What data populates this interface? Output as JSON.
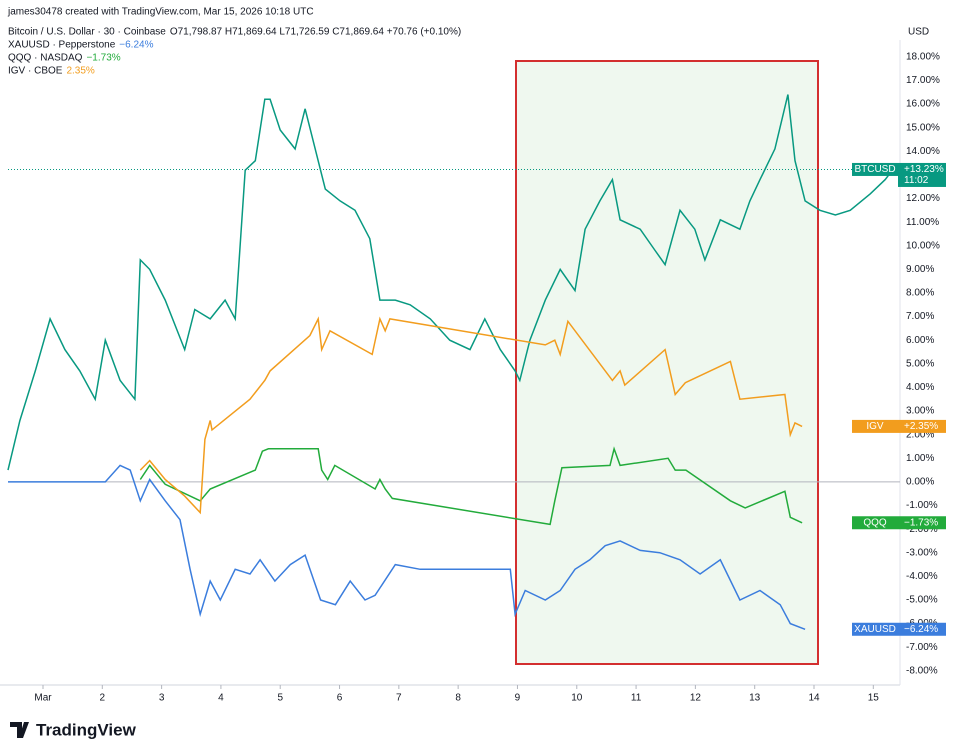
{
  "header": {
    "credit": "james30478 created with TradingView.com, Mar 15, 2026 10:18 UTC",
    "brand": "TradingView"
  },
  "chart_data": {
    "type": "line",
    "unit": "USD",
    "xlim": [
      0.41,
      15.45
    ],
    "ylim": [
      -8.6,
      18.5
    ],
    "xticks": [
      {
        "value": 1,
        "label": "Mar"
      },
      2,
      3,
      4,
      5,
      6,
      7,
      8,
      9,
      10,
      11,
      12,
      13,
      14,
      15
    ],
    "yticks": [
      {
        "value": -8,
        "label": "-8.00%"
      },
      {
        "value": -7,
        "label": "-7.00%"
      },
      {
        "value": -6,
        "label": "-6.00%"
      },
      {
        "value": -5,
        "label": "-5.00%"
      },
      {
        "value": -4,
        "label": "-4.00%"
      },
      {
        "value": -3,
        "label": "-3.00%"
      },
      {
        "value": -2,
        "label": "-2.00%"
      },
      {
        "value": -1,
        "label": "-1.00%"
      },
      {
        "value": 0,
        "label": "0.00%"
      },
      {
        "value": 1,
        "label": "1.00%"
      },
      {
        "value": 2,
        "label": "2.00%"
      },
      {
        "value": 3,
        "label": "3.00%"
      },
      {
        "value": 4,
        "label": "4.00%"
      },
      {
        "value": 5,
        "label": "5.00%"
      },
      {
        "value": 6,
        "label": "6.00%"
      },
      {
        "value": 7,
        "label": "7.00%"
      },
      {
        "value": 8,
        "label": "8.00%"
      },
      {
        "value": 9,
        "label": "9.00%"
      },
      {
        "value": 10,
        "label": "10.00%"
      },
      {
        "value": 11,
        "label": "11.00%"
      },
      {
        "value": 12,
        "label": "12.00%"
      },
      {
        "value": 13,
        "label": "13.00%"
      },
      {
        "value": 14,
        "label": "14.00%"
      },
      {
        "value": 15,
        "label": "15.00%"
      },
      {
        "value": 16,
        "label": "16.00%"
      },
      {
        "value": 17,
        "label": "17.00%"
      },
      {
        "value": 18,
        "label": "18.00%"
      }
    ],
    "series": [
      {
        "name": "BTCUSD",
        "color": "#089981",
        "legend_label": "Bitcoin / U.S. Dollar · 30 · Coinbase",
        "legend_change": "O71,798.87 H71,869.64 L71,726.59 C71,869.64 +70.76 (+0.10%)",
        "last_label": "+13.23%",
        "countdown": "11:02",
        "x": [
          0.41,
          0.61,
          0.87,
          1.12,
          1.37,
          1.62,
          1.88,
          2.05,
          2.3,
          2.55,
          2.64,
          2.8,
          3.06,
          3.39,
          3.56,
          3.82,
          4.07,
          4.24,
          4.41,
          4.58,
          4.74,
          4.83,
          5.0,
          5.25,
          5.42,
          5.59,
          5.76,
          6.01,
          6.26,
          6.51,
          6.68,
          6.94,
          7.19,
          7.53,
          7.86,
          8.2,
          8.45,
          8.71,
          8.96,
          9.04,
          9.21,
          9.47,
          9.72,
          9.97,
          10.14,
          10.39,
          10.6,
          10.73,
          11.07,
          11.32,
          11.49,
          11.74,
          11.99,
          12.16,
          12.42,
          12.75,
          12.92,
          13.09,
          13.34,
          13.56,
          13.68,
          13.85,
          14.1,
          14.36,
          14.61,
          14.95,
          15.2,
          15.33
        ],
        "values": [
          0.5,
          2.6,
          4.7,
          6.9,
          5.6,
          4.7,
          3.5,
          6.0,
          4.3,
          3.5,
          9.4,
          9.0,
          7.7,
          5.6,
          7.3,
          6.9,
          7.7,
          6.9,
          13.2,
          13.6,
          16.2,
          16.2,
          14.9,
          14.1,
          15.8,
          14.1,
          12.4,
          11.9,
          11.5,
          10.3,
          7.7,
          7.7,
          7.5,
          6.9,
          6.0,
          5.6,
          6.9,
          5.6,
          4.7,
          4.3,
          6.0,
          7.7,
          9.0,
          8.1,
          10.7,
          11.9,
          12.8,
          11.1,
          10.7,
          9.8,
          9.2,
          11.5,
          10.7,
          9.4,
          11.1,
          10.7,
          11.9,
          12.8,
          14.1,
          16.4,
          13.6,
          11.9,
          11.5,
          11.3,
          11.5,
          12.2,
          12.8,
          13.23
        ]
      },
      {
        "name": "XAUUSD",
        "color": "#3b7ddd",
        "legend_label": "XAUUSD · Pepperstone",
        "legend_change": "−6.24%",
        "last_label": "−6.24%",
        "x": [
          0.41,
          2.05,
          2.3,
          2.47,
          2.64,
          2.8,
          3.06,
          3.31,
          3.48,
          3.65,
          3.82,
          3.99,
          4.24,
          4.49,
          4.66,
          4.91,
          5.17,
          5.42,
          5.68,
          5.93,
          6.18,
          6.43,
          6.6,
          6.94,
          7.36,
          8.88,
          8.96,
          9.13,
          9.47,
          9.72,
          9.97,
          10.22,
          10.48,
          10.73,
          11.07,
          11.4,
          11.74,
          12.08,
          12.42,
          12.75,
          13.09,
          13.43,
          13.6,
          13.85
        ],
        "values": [
          0,
          0,
          0.7,
          0.5,
          -0.8,
          0.1,
          -0.8,
          -1.6,
          -3.7,
          -5.6,
          -4.2,
          -5.0,
          -3.7,
          -3.9,
          -3.3,
          -4.2,
          -3.5,
          -3.1,
          -5.0,
          -5.2,
          -4.2,
          -5.0,
          -4.8,
          -3.5,
          -3.7,
          -3.7,
          -5.6,
          -4.6,
          -5.0,
          -4.6,
          -3.7,
          -3.3,
          -2.7,
          -2.5,
          -2.9,
          -3.0,
          -3.3,
          -3.9,
          -3.3,
          -5.0,
          -4.6,
          -5.2,
          -6.0,
          -6.24
        ]
      },
      {
        "name": "QQQ",
        "color": "#22ab3b",
        "legend_label": "QQQ · NASDAQ",
        "legend_change": "−1.73%",
        "last_label": "−1.73%",
        "x": [
          2.64,
          2.8,
          3.06,
          3.65,
          3.82,
          4.58,
          4.7,
          4.8,
          5.64,
          5.7,
          5.8,
          5.92,
          6.6,
          6.68,
          6.77,
          6.89,
          9.55,
          9.63,
          9.75,
          10.56,
          10.63,
          10.73,
          11.54,
          11.66,
          11.84,
          12.59,
          12.84,
          13.51,
          13.6,
          13.8
        ],
        "values": [
          0.1,
          0.7,
          -0.1,
          -0.8,
          -0.3,
          0.5,
          1.3,
          1.4,
          1.4,
          0.5,
          0.1,
          0.7,
          -0.3,
          0.1,
          -0.3,
          -0.7,
          -1.8,
          -0.8,
          0.6,
          0.7,
          1.4,
          0.7,
          1.0,
          0.5,
          0.5,
          -0.8,
          -1.1,
          -0.4,
          -1.5,
          -1.73
        ]
      },
      {
        "name": "IGV",
        "color": "#f29d1e",
        "legend_label": "IGV · CBOE",
        "legend_change": "2.35%",
        "last_label": "+2.35%",
        "x": [
          2.64,
          2.8,
          3.06,
          3.39,
          3.65,
          3.73,
          3.82,
          3.85,
          4.49,
          4.74,
          4.83,
          5.5,
          5.64,
          5.7,
          5.84,
          6.55,
          6.68,
          6.77,
          6.85,
          9.47,
          9.63,
          9.72,
          9.85,
          10.6,
          10.73,
          10.81,
          11.49,
          11.66,
          11.83,
          12.59,
          12.75,
          13.51,
          13.6,
          13.68,
          13.8
        ],
        "values": [
          0.5,
          0.9,
          0.1,
          -0.6,
          -1.3,
          1.8,
          2.6,
          2.2,
          3.5,
          4.3,
          4.7,
          6.2,
          6.9,
          5.6,
          6.4,
          5.4,
          6.9,
          6.4,
          6.9,
          5.8,
          6.0,
          5.4,
          6.8,
          4.3,
          4.7,
          4.1,
          5.6,
          3.7,
          4.2,
          5.1,
          3.5,
          3.7,
          2.0,
          2.5,
          2.35
        ]
      }
    ]
  }
}
